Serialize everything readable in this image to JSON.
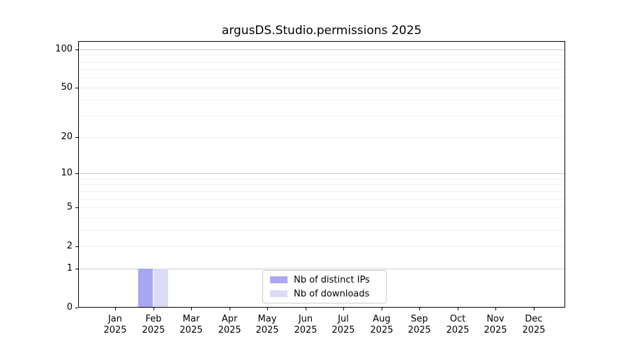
{
  "title": "argusDS.Studio.permissions 2025",
  "chart_data": {
    "type": "bar",
    "title": "argusDS.Studio.permissions 2025",
    "categories": [
      "Jan 2025",
      "Feb 2025",
      "Mar 2025",
      "Apr 2025",
      "May 2025",
      "Jun 2025",
      "Jul 2025",
      "Aug 2025",
      "Sep 2025",
      "Oct 2025",
      "Nov 2025",
      "Dec 2025"
    ],
    "category_month_labels": [
      "Jan",
      "Feb",
      "Mar",
      "Apr",
      "May",
      "Jun",
      "Jul",
      "Aug",
      "Sep",
      "Oct",
      "Nov",
      "Dec"
    ],
    "category_year_label": "2025",
    "series": [
      {
        "name": "Nb of distinct IPs",
        "color": "#a7a7f4",
        "values": [
          0,
          1,
          0,
          0,
          0,
          0,
          0,
          0,
          0,
          0,
          0,
          0
        ]
      },
      {
        "name": "Nb of downloads",
        "color": "#dcdcf8",
        "values": [
          0,
          1,
          0,
          0,
          0,
          0,
          0,
          0,
          0,
          0,
          0,
          0
        ]
      }
    ],
    "xlabel": "",
    "ylabel": "",
    "yscale": "log1p",
    "ylim": [
      0,
      115
    ],
    "yticks": [
      0,
      1,
      2,
      5,
      10,
      20,
      50,
      100
    ],
    "major_gridlines": [
      1,
      10,
      100
    ],
    "minor_gridlines": [
      2,
      3,
      4,
      5,
      6,
      7,
      8,
      9,
      20,
      30,
      40,
      50,
      60,
      70,
      80,
      90
    ],
    "grid": true,
    "legend_position": "lower center"
  },
  "colors": {
    "background": "#ffffff",
    "spine": "#000000",
    "text": "#000000",
    "grid_major": "#c9c9c9",
    "grid_minor": "#efefef",
    "legend_border": "#cccccc"
  }
}
